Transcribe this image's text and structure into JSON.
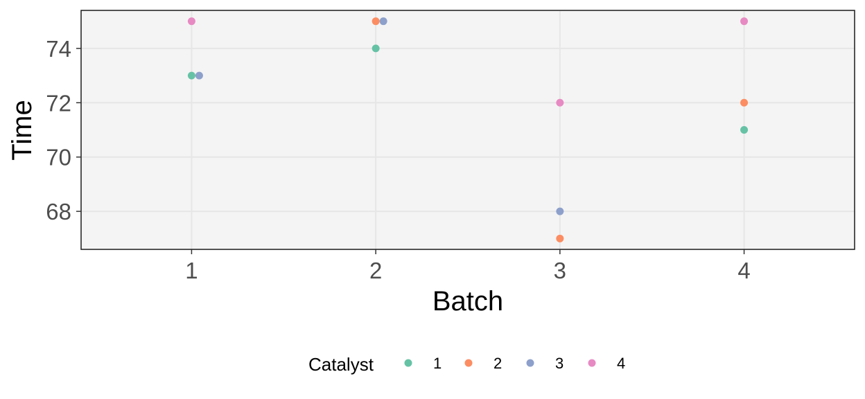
{
  "chart_data": {
    "type": "scatter",
    "title": "",
    "xlabel": "Batch",
    "ylabel": "Time",
    "x_categories": [
      "1",
      "2",
      "3",
      "4"
    ],
    "yticks": [
      68,
      70,
      72,
      74
    ],
    "ylim": [
      66.6,
      75.4
    ],
    "xlim": [
      0.4,
      4.6
    ],
    "grid": true,
    "panel_background": "#f4f4f4",
    "grid_color": "#e6e6e6",
    "legend": {
      "title": "Catalyst",
      "position": "bottom",
      "entries": [
        "1",
        "2",
        "3",
        "4"
      ]
    },
    "series": [
      {
        "name": "1",
        "color": "#66c2a5",
        "points": [
          {
            "x": 1,
            "y": 73
          },
          {
            "x": 2,
            "y": 74
          },
          {
            "x": 4,
            "y": 71
          }
        ]
      },
      {
        "name": "2",
        "color": "#fc8d62",
        "points": [
          {
            "x": 2,
            "y": 75
          },
          {
            "x": 3,
            "y": 67
          },
          {
            "x": 4,
            "y": 72
          }
        ]
      },
      {
        "name": "3",
        "color": "#8da0cb",
        "points": [
          {
            "x": 1,
            "y": 73
          },
          {
            "x": 2,
            "y": 75
          },
          {
            "x": 3,
            "y": 68
          }
        ]
      },
      {
        "name": "4",
        "color": "#e78ac3",
        "points": [
          {
            "x": 1,
            "y": 75
          },
          {
            "x": 3,
            "y": 72
          },
          {
            "x": 4,
            "y": 75
          }
        ]
      }
    ]
  }
}
